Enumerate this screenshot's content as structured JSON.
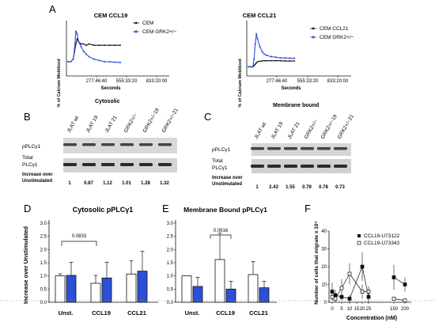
{
  "panels": {
    "A": {
      "label": "A",
      "left": {
        "title": "CEM CCL19",
        "ylabel": "% of Calcium Mobilized",
        "xlabel": "Seconds",
        "xticks": [
          "277:46:40",
          "555:33:20",
          "833:20:00"
        ],
        "legend": [
          "CEM",
          "CEM GRK2+/−"
        ]
      },
      "right": {
        "title": "CEM CCL21",
        "ylabel": "% of Calcium Mobilized",
        "xlabel": "Seconds",
        "xticks": [
          "277:46:40",
          "555:33:20",
          "833:20:00"
        ],
        "legend": [
          "CEM CCL21",
          "CEM GRK2+/−"
        ]
      }
    },
    "B": {
      "label": "B",
      "title": "Cytosolic",
      "lanes": [
        "JLAT wt",
        "JLAT 19",
        "JLAT 21",
        "GRK2+/−",
        "GRK2+/−19",
        "GRK2+/−21"
      ],
      "row1": "pPLCγ1",
      "row2a": "Total",
      "row2b": "PLCγ1",
      "inc_a": "Increase over",
      "inc_b": "Unstimulated",
      "values": [
        "1",
        "0.87",
        "1.12",
        "1.01",
        "1.28",
        "1.32"
      ]
    },
    "C": {
      "label": "C",
      "title": "Membrane bound",
      "lanes": [
        "JLAT wt",
        "JLAT 19",
        "JLAT 21",
        "GRK2+/−",
        "GRK2+/−19",
        "GRK2+/−21"
      ],
      "row1": "pPLCγ1",
      "row2a": "Total",
      "row2b": "PLCγ1",
      "inc_a": "Increase over",
      "inc_b": "Unstimulated",
      "values": [
        "1",
        "2.43",
        "1.55",
        "0.79",
        "0.78",
        "0.73"
      ]
    },
    "D": {
      "label": "D",
      "ylabel": "Increase over Unstimulated",
      "yticks": [
        "0.0",
        "0.5",
        "1.0",
        "1.5",
        "2.0",
        "2.5",
        "3.0"
      ],
      "pvalue": "0.0833"
    },
    "E": {
      "label": "E",
      "yticks": [
        "0.0",
        "0.5",
        "1.0",
        "1.5",
        "2.0",
        "2.5",
        "3.0"
      ],
      "pvalue": "0.0816"
    },
    "F": {
      "label": "F",
      "ylabel": "Number of cells that migrate x 10⁴",
      "xlabel": "Concentration (nM)",
      "yticks": [
        "0",
        "10",
        "20",
        "30",
        "40"
      ],
      "xticks": [
        "0",
        "5",
        "10",
        "15",
        "20",
        "25",
        "150",
        "200"
      ],
      "legend": [
        "CCL19-U73122",
        "CCL19-U73343"
      ]
    }
  },
  "chart_data": [
    {
      "type": "line",
      "panel": "A-left",
      "title": "CEM CCL19",
      "xlabel": "Seconds",
      "ylabel": "% of Calcium Mobilized",
      "legend_position": "top-right",
      "series": [
        {
          "name": "CEM",
          "color": "#111111",
          "x": [
            0,
            10,
            20,
            25,
            30,
            35,
            40,
            50,
            60,
            70,
            80,
            100,
            120,
            140,
            160,
            180,
            200
          ],
          "y": [
            5,
            5,
            6,
            9,
            12,
            14,
            13,
            12,
            12,
            11.5,
            12,
            11.5,
            11.5,
            11.5,
            11.5,
            11.5,
            11.5
          ]
        },
        {
          "name": "CEM GRK2+/−",
          "color": "#2d4fd6",
          "x": [
            0,
            10,
            20,
            25,
            30,
            35,
            40,
            50,
            60,
            70,
            80,
            100,
            120,
            140,
            160,
            180,
            200
          ],
          "y": [
            5,
            5,
            6,
            10,
            17,
            16,
            13,
            11,
            9,
            8,
            7,
            6,
            5.5,
            5,
            5,
            4.8,
            4.7
          ]
        }
      ]
    },
    {
      "type": "line",
      "panel": "A-right",
      "title": "CEM CCL21",
      "xlabel": "Seconds",
      "ylabel": "% of Calcium Mobilized",
      "legend_position": "top-right",
      "series": [
        {
          "name": "CEM CCL21",
          "color": "#111111",
          "x": [
            0,
            10,
            20,
            25,
            30,
            35,
            40,
            50,
            60,
            70,
            80,
            100,
            120,
            140,
            160,
            180,
            200
          ],
          "y": [
            3,
            3,
            3,
            3.5,
            4,
            4.5,
            5,
            5.2,
            5.3,
            5.4,
            5.4,
            5.4,
            5.4,
            5.4,
            5.3,
            5.3,
            5.3
          ]
        },
        {
          "name": "CEM GRK2+/−",
          "color": "#2d4fd6",
          "x": [
            0,
            10,
            20,
            25,
            30,
            35,
            40,
            50,
            60,
            70,
            80,
            100,
            120,
            140,
            160,
            180,
            200
          ],
          "y": [
            3,
            3,
            3,
            6,
            12,
            16,
            14,
            11,
            9,
            8,
            7.5,
            7,
            6.8,
            6.5,
            6.5,
            6.4,
            6.4
          ]
        }
      ]
    },
    {
      "type": "bar",
      "panel": "D",
      "title": "Cytosolic pPLCγ1",
      "ylabel": "Increase over Unstimulated",
      "ylim": [
        0,
        3.0
      ],
      "categories": [
        "Unst.",
        "CCL19",
        "CCL21"
      ],
      "series": [
        {
          "name": "white",
          "color": "#ffffff",
          "values": [
            1.0,
            0.72,
            1.07
          ],
          "err": [
            0.08,
            0.3,
            0.5
          ]
        },
        {
          "name": "blue",
          "color": "#2d4fd6",
          "values": [
            1.02,
            0.92,
            1.18
          ],
          "err": [
            0.5,
            0.6,
            0.75
          ]
        }
      ]
    },
    {
      "type": "bar",
      "panel": "E",
      "title": "Membrane Bound pPLCγ1",
      "ylim": [
        0,
        3.0
      ],
      "categories": [
        "Unst.",
        "CCL19",
        "CCL21"
      ],
      "series": [
        {
          "name": "white",
          "color": "#ffffff",
          "values": [
            1.0,
            1.62,
            1.05
          ],
          "err": [
            0.0,
            1.0,
            0.5
          ]
        },
        {
          "name": "blue",
          "color": "#2d4fd6",
          "values": [
            0.6,
            0.5,
            0.55
          ],
          "err": [
            0.35,
            0.3,
            0.25
          ]
        }
      ]
    },
    {
      "type": "scatter",
      "panel": "F",
      "xlabel": "Concentration (nM)",
      "ylabel": "Number of cells that migrate x 10⁴",
      "ylim": [
        0,
        40
      ],
      "legend_position": "top-right",
      "series": [
        {
          "name": "CCL19-U73122",
          "marker": "filled-square",
          "x": [
            0,
            1,
            5,
            10,
            20,
            25,
            150,
            200
          ],
          "y": [
            6,
            4,
            3,
            2,
            20,
            3,
            14,
            10
          ],
          "err": [
            5,
            3,
            2,
            2,
            8,
            3,
            7,
            4
          ]
        },
        {
          "name": "CCL19-U73343",
          "marker": "open-square",
          "x": [
            0,
            1,
            5,
            10,
            20,
            25,
            150,
            200
          ],
          "y": [
            3,
            2,
            8,
            16,
            6,
            6,
            2,
            1
          ],
          "err": [
            2,
            2,
            5,
            6,
            4,
            3,
            1,
            1
          ]
        }
      ]
    }
  ]
}
